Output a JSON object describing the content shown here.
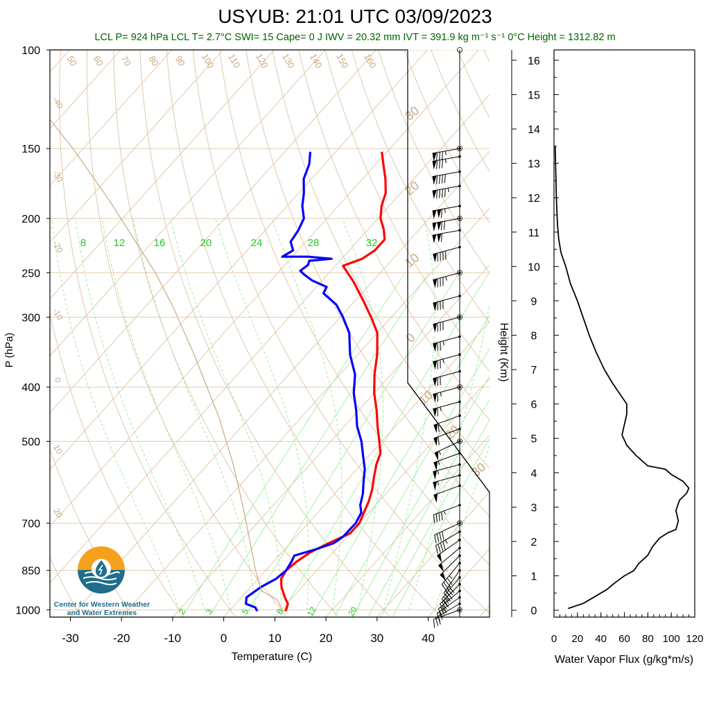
{
  "header": {
    "title": "USYUB: 21:01 UTC 03/09/2023",
    "stats": "LCL P= 924 hPa  LCL T= 2.7°C  SWI= 15  Cape= 0 J  IWV = 20.32 mm  IVT = 391.9 kg m⁻¹ s⁻¹  0°C Height = 1312.82 m"
  },
  "logo": {
    "line1": "Center for Western Weather",
    "line2": "and Water Extremes"
  },
  "chart_data": [
    {
      "type": "line",
      "subtype": "skew-t",
      "xlabel": "Temperature (C)",
      "ylabel": "P (hPa)",
      "xlim": [
        -34,
        52
      ],
      "ylim": [
        1030,
        100
      ],
      "yscale": "log",
      "xticks": [
        -30,
        -20,
        -10,
        0,
        10,
        20,
        30,
        40
      ],
      "yticks": [
        100,
        150,
        200,
        250,
        300,
        400,
        500,
        700,
        850,
        1000
      ],
      "mixing_ratio_labels": [
        "8",
        "12",
        "16",
        "20",
        "24",
        "28",
        "32"
      ],
      "mixing_ratio_labels_bottom": [
        "2",
        "3",
        "5",
        "8",
        "12",
        "20"
      ],
      "isotherm_labels": [
        "-40",
        "-30",
        "-20",
        "-10",
        "0",
        "10",
        "20"
      ],
      "adiabat_labels": [
        "50",
        "60",
        "70",
        "80",
        "90",
        "100",
        "110",
        "120",
        "130",
        "140",
        "150",
        "160"
      ],
      "hodo_labels": [
        "30",
        "20",
        "10",
        "0",
        "10",
        "20",
        "30"
      ],
      "series": [
        {
          "name": "temperature",
          "color": "#ff0000",
          "points": [
            [
              11.0,
              1005
            ],
            [
              10.8,
              995
            ],
            [
              10.2,
              975
            ],
            [
              8.5,
              950
            ],
            [
              6.0,
              910
            ],
            [
              4.5,
              880
            ],
            [
              4.0,
              850
            ],
            [
              4.5,
              820
            ],
            [
              5.5,
              790
            ],
            [
              7.5,
              760
            ],
            [
              10.0,
              730
            ],
            [
              10.0,
              700
            ],
            [
              9.0,
              670
            ],
            [
              8.0,
              640
            ],
            [
              6.6,
              610
            ],
            [
              4.8,
              580
            ],
            [
              3.0,
              550
            ],
            [
              1.8,
              525
            ],
            [
              -0.5,
              500
            ],
            [
              -3.5,
              470
            ],
            [
              -6.5,
              440
            ],
            [
              -10.0,
              410
            ],
            [
              -13.2,
              380
            ],
            [
              -16.2,
              350
            ],
            [
              -20.0,
              320
            ],
            [
              -24.0,
              300
            ],
            [
              -28.5,
              280
            ],
            [
              -33.5,
              260
            ],
            [
              -38.5,
              243
            ],
            [
              -36.0,
              236
            ],
            [
              -35.0,
              228
            ],
            [
              -35.0,
              218
            ],
            [
              -37.0,
              209
            ],
            [
              -39.5,
              200
            ],
            [
              -41.5,
              190
            ],
            [
              -43.0,
              180
            ],
            [
              -45.5,
              170
            ],
            [
              -48.5,
              160
            ],
            [
              -51.0,
              152
            ]
          ]
        },
        {
          "name": "dewpoint",
          "color": "#0000ff",
          "points": [
            [
              5.5,
              1005
            ],
            [
              4.5,
              990
            ],
            [
              2.0,
              975
            ],
            [
              1.0,
              950
            ],
            [
              2.0,
              910
            ],
            [
              3.5,
              880
            ],
            [
              4.0,
              850
            ],
            [
              3.5,
              820
            ],
            [
              3.0,
              800
            ],
            [
              6.0,
              780
            ],
            [
              8.5,
              760
            ],
            [
              9.2,
              740
            ],
            [
              9.3,
              700
            ],
            [
              8.5,
              670
            ],
            [
              7.0,
              650
            ],
            [
              5.5,
              620
            ],
            [
              3.5,
              590
            ],
            [
              1.5,
              560
            ],
            [
              -1.2,
              530
            ],
            [
              -4.0,
              500
            ],
            [
              -7.5,
              470
            ],
            [
              -10.5,
              440
            ],
            [
              -14.0,
              410
            ],
            [
              -17.0,
              380
            ],
            [
              -21.5,
              350
            ],
            [
              -25.5,
              320
            ],
            [
              -29.5,
              300
            ],
            [
              -33.0,
              285
            ],
            [
              -37.5,
              272
            ],
            [
              -38.0,
              265
            ],
            [
              -42.0,
              258
            ],
            [
              -44.5,
              252
            ],
            [
              -46.0,
              248
            ],
            [
              -45.5,
              242
            ],
            [
              -46.0,
              238
            ],
            [
              -42.0,
              236
            ],
            [
              -47.0,
              234
            ],
            [
              -52.0,
              234
            ],
            [
              -51.0,
              228
            ],
            [
              -53.0,
              220
            ],
            [
              -53.5,
              210
            ],
            [
              -54.5,
              200
            ],
            [
              -57.0,
              190
            ],
            [
              -59.0,
              180
            ],
            [
              -61.5,
              170
            ],
            [
              -63.0,
              160
            ],
            [
              -65.0,
              152
            ]
          ]
        },
        {
          "name": "parcel",
          "color": "#c8a882",
          "points": [
            [
              10.5,
              1005
            ],
            [
              7.5,
              960
            ],
            [
              2.7,
              924
            ],
            [
              -2.0,
              850
            ],
            [
              -8.5,
              750
            ],
            [
              -16.0,
              650
            ],
            [
              -25.0,
              550
            ],
            [
              -36.5,
              450
            ],
            [
              -52.0,
              350
            ],
            [
              -64.0,
              290
            ],
            [
              -74.0,
              250
            ],
            [
              -85.0,
              215
            ],
            [
              -96.0,
              185
            ],
            [
              -112.0,
              150
            ],
            [
              -130.0,
              120
            ],
            [
              -145.0,
              100
            ]
          ]
        }
      ],
      "wind_barbs": {
        "x_position_label": "right",
        "levels": [
          {
            "p": 1000,
            "dir": 250,
            "kt": 10
          },
          {
            "p": 975,
            "dir": 240,
            "kt": 20
          },
          {
            "p": 950,
            "dir": 235,
            "kt": 25
          },
          {
            "p": 925,
            "dir": 230,
            "kt": 30
          },
          {
            "p": 900,
            "dir": 225,
            "kt": 35
          },
          {
            "p": 875,
            "dir": 220,
            "kt": 40
          },
          {
            "p": 850,
            "dir": 215,
            "kt": 40
          },
          {
            "p": 825,
            "dir": 220,
            "kt": 45
          },
          {
            "p": 800,
            "dir": 225,
            "kt": 50
          },
          {
            "p": 775,
            "dir": 230,
            "kt": 50
          },
          {
            "p": 750,
            "dir": 235,
            "kt": 50
          },
          {
            "p": 725,
            "dir": 240,
            "kt": 45
          },
          {
            "p": 700,
            "dir": 245,
            "kt": 40
          },
          {
            "p": 650,
            "dir": 250,
            "kt": 45
          },
          {
            "p": 600,
            "dir": 250,
            "kt": 50
          },
          {
            "p": 575,
            "dir": 255,
            "kt": 55
          },
          {
            "p": 550,
            "dir": 255,
            "kt": 55
          },
          {
            "p": 525,
            "dir": 250,
            "kt": 55
          },
          {
            "p": 500,
            "dir": 245,
            "kt": 55
          },
          {
            "p": 475,
            "dir": 250,
            "kt": 60
          },
          {
            "p": 450,
            "dir": 250,
            "kt": 60
          },
          {
            "p": 425,
            "dir": 255,
            "kt": 65
          },
          {
            "p": 400,
            "dir": 255,
            "kt": 65
          },
          {
            "p": 375,
            "dir": 255,
            "kt": 70
          },
          {
            "p": 350,
            "dir": 255,
            "kt": 75
          },
          {
            "p": 325,
            "dir": 255,
            "kt": 75
          },
          {
            "p": 300,
            "dir": 255,
            "kt": 80
          },
          {
            "p": 275,
            "dir": 255,
            "kt": 80
          },
          {
            "p": 250,
            "dir": 255,
            "kt": 85
          },
          {
            "p": 225,
            "dir": 255,
            "kt": 90
          },
          {
            "p": 210,
            "dir": 260,
            "kt": 110
          },
          {
            "p": 200,
            "dir": 260,
            "kt": 120
          },
          {
            "p": 190,
            "dir": 260,
            "kt": 115
          },
          {
            "p": 175,
            "dir": 260,
            "kt": 95
          },
          {
            "p": 165,
            "dir": 260,
            "kt": 90
          },
          {
            "p": 155,
            "dir": 260,
            "kt": 85
          },
          {
            "p": 150,
            "dir": 260,
            "kt": 85
          }
        ]
      }
    },
    {
      "type": "line",
      "xlabel": "Water Vapor Flux (g/kg*m/s)",
      "ylabel": "Height (Km)",
      "xlim": [
        0,
        120
      ],
      "ylim": [
        -0.2,
        16.3
      ],
      "xticks": [
        0,
        20,
        40,
        60,
        80,
        100,
        120
      ],
      "yticks": [
        0,
        1,
        2,
        3,
        4,
        5,
        6,
        7,
        8,
        9,
        10,
        11,
        12,
        13,
        14,
        15,
        16
      ],
      "series": [
        {
          "name": "water-vapor-flux",
          "color": "#000000",
          "points": [
            [
              12,
              0.05
            ],
            [
              25,
              0.2
            ],
            [
              35,
              0.4
            ],
            [
              45,
              0.6
            ],
            [
              52,
              0.8
            ],
            [
              60,
              1.0
            ],
            [
              68,
              1.15
            ],
            [
              72,
              1.35
            ],
            [
              80,
              1.6
            ],
            [
              84,
              1.85
            ],
            [
              90,
              2.1
            ],
            [
              97,
              2.25
            ],
            [
              104,
              2.35
            ],
            [
              106,
              2.6
            ],
            [
              104,
              2.9
            ],
            [
              107,
              3.2
            ],
            [
              113,
              3.4
            ],
            [
              115,
              3.55
            ],
            [
              110,
              3.75
            ],
            [
              100,
              3.95
            ],
            [
              95,
              4.1
            ],
            [
              80,
              4.2
            ],
            [
              70,
              4.5
            ],
            [
              62,
              4.8
            ],
            [
              58,
              5.1
            ],
            [
              60,
              5.4
            ],
            [
              62,
              5.7
            ],
            [
              62,
              6.0
            ],
            [
              57,
              6.25
            ],
            [
              50,
              6.6
            ],
            [
              43,
              7.0
            ],
            [
              36,
              7.5
            ],
            [
              30,
              8.0
            ],
            [
              25,
              8.5
            ],
            [
              20,
              9.0
            ],
            [
              14,
              9.5
            ],
            [
              10,
              10.0
            ],
            [
              6,
              10.4
            ],
            [
              4,
              10.8
            ],
            [
              3,
              11.2
            ],
            [
              2,
              12.0
            ],
            [
              1.5,
              12.8
            ],
            [
              1,
              13.5
            ]
          ]
        }
      ]
    }
  ]
}
